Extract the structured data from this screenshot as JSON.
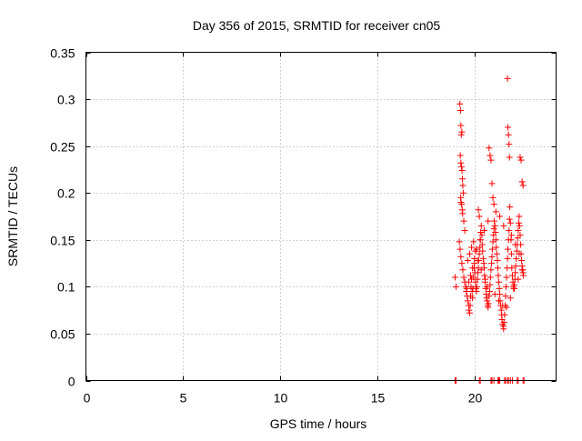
{
  "chart_data": {
    "type": "scatter",
    "title": "Day 356 of 2015, SRMTID for receiver cn05",
    "xlabel": "GPS time / hours",
    "ylabel": "SRMTID / TECUs",
    "xlim": [
      0,
      24.2
    ],
    "ylim": [
      0,
      0.35
    ],
    "xticks": [
      0,
      5,
      10,
      15,
      20
    ],
    "xtick_labels": [
      "0",
      "5",
      "10",
      "15",
      "20"
    ],
    "yticks": [
      0,
      0.05,
      0.1,
      0.15,
      0.2,
      0.25,
      0.3,
      0.35
    ],
    "ytick_labels": [
      "0",
      "0.05",
      "0.1",
      "0.15",
      "0.2",
      "0.25",
      "0.3",
      "0.35"
    ],
    "grid": true,
    "marker": "+",
    "series": [
      {
        "name": "SRMTID",
        "color": "#ff0000",
        "x": [
          19.0,
          19.05,
          19.25,
          19.28,
          19.3,
          19.32,
          19.35,
          19.27,
          19.3,
          19.33,
          19.36,
          19.38,
          19.4,
          19.42,
          19.29,
          19.31,
          19.34,
          19.37,
          19.39,
          19.45,
          19.5,
          19.22,
          19.26,
          19.3,
          19.35,
          19.4,
          19.45,
          19.5,
          19.55,
          19.58,
          19.62,
          19.65,
          19.7,
          19.72,
          19.75,
          19.78,
          19.8,
          19.82,
          19.85,
          19.88,
          19.9,
          19.92,
          19.95,
          19.98,
          20.0,
          20.02,
          20.05,
          20.08,
          20.1,
          20.12,
          20.15,
          20.18,
          20.2,
          20.22,
          20.25,
          20.28,
          20.3,
          20.32,
          20.35,
          20.38,
          20.4,
          20.42,
          20.45,
          20.48,
          20.5,
          20.52,
          20.55,
          20.58,
          20.6,
          20.62,
          20.65,
          20.68,
          20.7,
          20.72,
          20.75,
          20.78,
          20.8,
          20.82,
          20.85,
          20.88,
          20.9,
          20.92,
          20.95,
          20.98,
          21.0,
          21.02,
          21.05,
          21.08,
          21.1,
          21.12,
          21.15,
          21.18,
          21.2,
          21.22,
          21.25,
          21.28,
          21.3,
          21.32,
          21.35,
          21.38,
          21.4,
          21.42,
          21.45,
          21.48,
          21.5,
          21.52,
          21.55,
          21.58,
          21.6,
          21.62,
          21.65,
          21.68,
          21.7,
          21.72,
          21.75,
          21.78,
          21.8,
          21.82,
          21.85,
          21.88,
          21.9,
          21.92,
          21.95,
          21.98,
          22.0,
          22.02,
          22.05,
          22.08,
          22.1,
          22.12,
          22.15,
          22.18,
          22.2,
          22.22,
          22.25,
          22.28,
          22.3,
          22.32,
          22.35,
          22.38,
          22.4,
          22.42,
          22.45,
          22.48,
          22.5,
          22.52,
          21.7,
          21.72,
          21.75,
          21.78,
          21.8,
          20.75,
          20.8,
          20.85,
          20.2,
          20.25,
          20.9,
          20.95,
          21.0,
          22.35,
          22.4,
          22.45,
          22.5,
          19.6,
          19.7,
          19.8,
          19.9,
          20.0,
          20.1,
          20.3,
          20.5,
          20.7,
          21.1,
          21.3,
          21.5,
          21.9,
          22.1,
          22.3,
          19.65,
          19.75,
          19.85,
          19.95,
          20.05,
          20.15,
          20.35,
          20.55,
          20.65,
          21.05,
          21.25,
          21.45,
          21.65,
          21.85,
          22.05,
          22.25,
          22.45,
          19.0,
          19.05,
          20.25,
          20.3,
          20.85,
          20.9,
          21.0,
          21.2,
          21.25,
          21.3,
          21.55,
          21.6,
          21.7,
          21.75,
          21.85,
          21.95,
          22.2,
          22.25,
          22.5,
          22.55
        ],
        "y": [
          0.11,
          0.1,
          0.295,
          0.288,
          0.272,
          0.262,
          0.265,
          0.24,
          0.232,
          0.228,
          0.224,
          0.215,
          0.208,
          0.2,
          0.195,
          0.19,
          0.188,
          0.182,
          0.178,
          0.17,
          0.16,
          0.148,
          0.14,
          0.132,
          0.125,
          0.118,
          0.11,
          0.105,
          0.1,
          0.095,
          0.09,
          0.085,
          0.08,
          0.075,
          0.072,
          0.08,
          0.09,
          0.1,
          0.108,
          0.095,
          0.088,
          0.098,
          0.11,
          0.12,
          0.125,
          0.115,
          0.105,
          0.098,
          0.095,
          0.1,
          0.108,
          0.115,
          0.12,
          0.128,
          0.135,
          0.142,
          0.15,
          0.158,
          0.165,
          0.155,
          0.145,
          0.138,
          0.13,
          0.125,
          0.12,
          0.112,
          0.105,
          0.098,
          0.092,
          0.088,
          0.085,
          0.08,
          0.078,
          0.082,
          0.09,
          0.095,
          0.102,
          0.11,
          0.118,
          0.125,
          0.132,
          0.14,
          0.148,
          0.155,
          0.162,
          0.17,
          0.165,
          0.158,
          0.15,
          0.142,
          0.135,
          0.128,
          0.12,
          0.112,
          0.105,
          0.098,
          0.092,
          0.085,
          0.08,
          0.075,
          0.07,
          0.065,
          0.06,
          0.058,
          0.055,
          0.062,
          0.07,
          0.08,
          0.09,
          0.1,
          0.11,
          0.12,
          0.13,
          0.14,
          0.15,
          0.16,
          0.172,
          0.185,
          0.168,
          0.15,
          0.135,
          0.12,
          0.112,
          0.105,
          0.1,
          0.098,
          0.102,
          0.108,
          0.115,
          0.122,
          0.13,
          0.138,
          0.145,
          0.152,
          0.16,
          0.168,
          0.175,
          0.165,
          0.155,
          0.145,
          0.135,
          0.128,
          0.122,
          0.118,
          0.115,
          0.112,
          0.322,
          0.27,
          0.262,
          0.252,
          0.238,
          0.248,
          0.24,
          0.235,
          0.182,
          0.175,
          0.21,
          0.195,
          0.188,
          0.238,
          0.235,
          0.212,
          0.208,
          0.098,
          0.105,
          0.112,
          0.12,
          0.13,
          0.14,
          0.15,
          0.16,
          0.17,
          0.18,
          0.175,
          0.165,
          0.155,
          0.145,
          0.135,
          0.128,
          0.135,
          0.142,
          0.148,
          0.138,
          0.128,
          0.118,
          0.108,
          0.1,
          0.092,
          0.085,
          0.08,
          0.078,
          0.088,
          0.098,
          0.108,
          0.118,
          0,
          0,
          0,
          0,
          0,
          0,
          0,
          0,
          0,
          0,
          0,
          0,
          0,
          0,
          0,
          0,
          0,
          0,
          0,
          0
        ]
      }
    ]
  }
}
